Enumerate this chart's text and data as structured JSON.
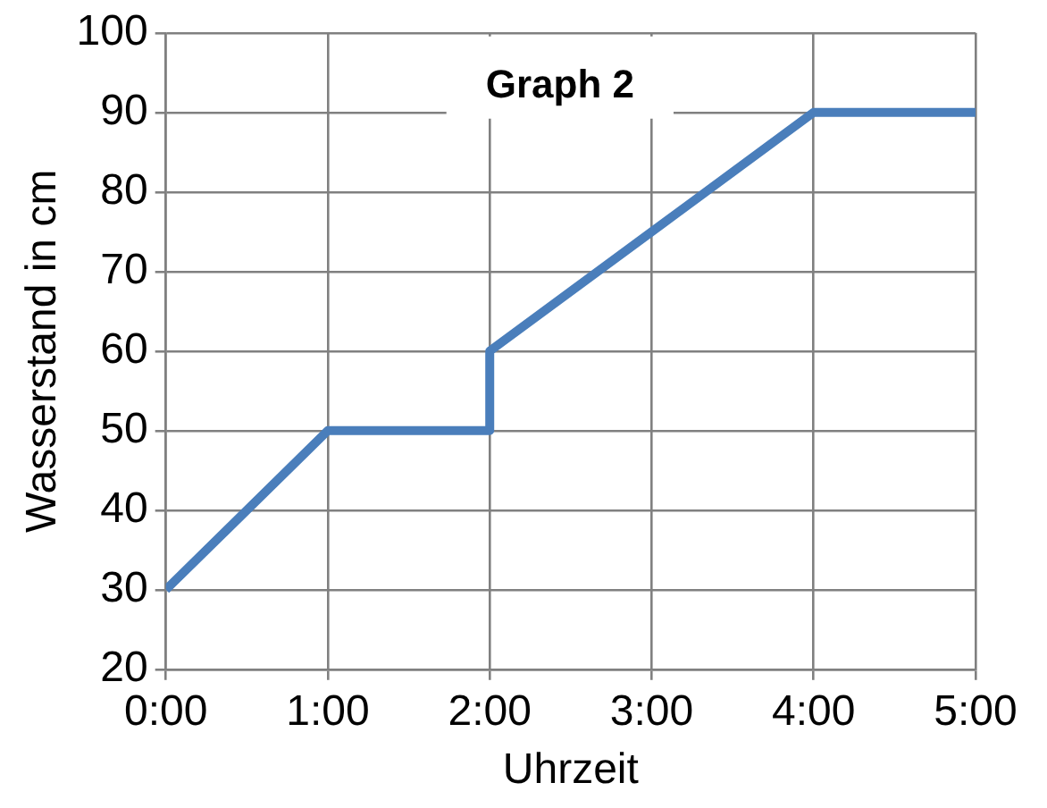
{
  "chart_data": {
    "type": "line",
    "title": "Graph 2",
    "xlabel": "Uhrzeit",
    "ylabel": "Wasserstand in cm",
    "x": [
      0,
      1,
      2,
      2,
      4,
      5
    ],
    "series": [
      {
        "color": "#4a7ebb",
        "values": [
          30,
          50,
          50,
          60,
          90,
          90
        ]
      }
    ],
    "xlim": [
      0,
      5
    ],
    "xticks": [
      {
        "value": 0,
        "label": "0:00"
      },
      {
        "value": 1,
        "label": "1:00"
      },
      {
        "value": 2,
        "label": "2:00"
      },
      {
        "value": 3,
        "label": "3:00"
      },
      {
        "value": 4,
        "label": "4:00"
      },
      {
        "value": 5,
        "label": "5:00"
      }
    ],
    "ylim": [
      20,
      100
    ],
    "yticks": [
      20,
      30,
      40,
      50,
      60,
      70,
      80,
      90,
      100
    ],
    "grid": true,
    "legend": false,
    "marker": "none",
    "line_style": "solid"
  }
}
